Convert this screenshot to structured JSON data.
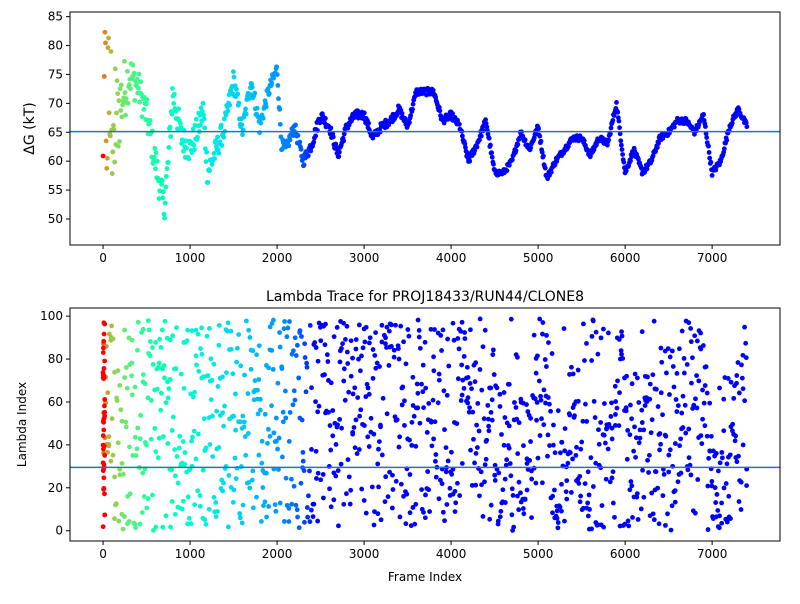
{
  "chart_data": [
    {
      "type": "scatter",
      "title": "",
      "xlabel": "",
      "ylabel": "ΔG (kT)",
      "xlim": [
        -380,
        7780
      ],
      "ylim": [
        45.5,
        85.8
      ],
      "xticks": [
        0,
        1000,
        2000,
        3000,
        4000,
        5000,
        6000,
        7000
      ],
      "xtick_labels": [
        "0",
        "1000",
        "2000",
        "3000",
        "4000",
        "5000",
        "6000",
        "7000"
      ],
      "yticks": [
        50,
        55,
        60,
        65,
        70,
        75,
        80,
        85
      ],
      "ytick_labels": [
        "50",
        "55",
        "60",
        "65",
        "70",
        "75",
        "80",
        "85"
      ],
      "hline": 65.1,
      "hline_color": "#1f77b4",
      "colormap": "rainbow",
      "color_note": "color runs from red at frame 0 to purple at late frames",
      "x_max": 7400,
      "trend": {
        "x": [
          0,
          60,
          120,
          200,
          300,
          400,
          500,
          600,
          700,
          750,
          800,
          900,
          1000,
          1100,
          1150,
          1200,
          1300,
          1400,
          1500,
          1550,
          1600,
          1700,
          1750,
          1800,
          1900,
          2000,
          2050,
          2100,
          2200,
          2300,
          2400,
          2500,
          2600,
          2700,
          2800,
          2900,
          3000,
          3100,
          3200,
          3300,
          3400,
          3500,
          3600,
          3700,
          3800,
          3900,
          4000,
          4100,
          4200,
          4300,
          4400,
          4500,
          4600,
          4700,
          4800,
          4900,
          5000,
          5100,
          5200,
          5300,
          5400,
          5500,
          5600,
          5700,
          5800,
          5900,
          6000,
          6100,
          6200,
          6300,
          6400,
          6500,
          6600,
          6700,
          6800,
          6900,
          7000,
          7100,
          7200,
          7300,
          7400
        ],
        "y": [
          68,
          70,
          66,
          70,
          75,
          73,
          68,
          60,
          52,
          60,
          72,
          64,
          62,
          66,
          69,
          58,
          62,
          66,
          74,
          70,
          65,
          74,
          70,
          66,
          72,
          76,
          63,
          62,
          66,
          60,
          63,
          68,
          66,
          61,
          66,
          68,
          68,
          64,
          66,
          67,
          69,
          66,
          72,
          72,
          72,
          67,
          68,
          66,
          60,
          63,
          67,
          58,
          58,
          60,
          65,
          62,
          66,
          57,
          60,
          62,
          64,
          64,
          61,
          64,
          63,
          70,
          58,
          62,
          58,
          60,
          64,
          65,
          67,
          67,
          65,
          68,
          58,
          60,
          66,
          69,
          66
        ],
        "spread": [
          14,
          13,
          10,
          7,
          4,
          3,
          3,
          3,
          3,
          3,
          3,
          2.5,
          2.5,
          2.5,
          2.5,
          2.5,
          2,
          2,
          2,
          1.5,
          1.5,
          1.5,
          1.5,
          1.5,
          1.2,
          1.2,
          1,
          1,
          1,
          1,
          1,
          1,
          0.8,
          0.8,
          0.8,
          0.8,
          0.7,
          0.7,
          0.7,
          0.7,
          0.7,
          0.6,
          0.6,
          0.6,
          0.6,
          0.6,
          0.6,
          0.6,
          0.6,
          0.6,
          0.6,
          0.5,
          0.5,
          0.5,
          0.5,
          0.5,
          0.5,
          0.5,
          0.5,
          0.5,
          0.5,
          0.5,
          0.5,
          0.5,
          0.5,
          0.5,
          0.5,
          0.5,
          0.5,
          0.5,
          0.5,
          0.5,
          0.5,
          0.5,
          0.5,
          0.5,
          0.5,
          0.5,
          0.5,
          0.5,
          0.5
        ]
      }
    },
    {
      "type": "scatter",
      "title": "Lambda Trace for PROJ18433/RUN44/CLONE8",
      "xlabel": "Frame Index",
      "ylabel": "Lambda Index",
      "xlim": [
        -380,
        7780
      ],
      "ylim": [
        -4.8,
        103.8
      ],
      "xticks": [
        0,
        1000,
        2000,
        3000,
        4000,
        5000,
        6000,
        7000
      ],
      "xtick_labels": [
        "0",
        "1000",
        "2000",
        "3000",
        "4000",
        "5000",
        "6000",
        "7000"
      ],
      "yticks": [
        0,
        20,
        40,
        60,
        80,
        100
      ],
      "ytick_labels": [
        "0",
        "20",
        "40",
        "60",
        "80",
        "100"
      ],
      "hline": 29.5,
      "hline_color": "#1f77b4",
      "colormap": "rainbow",
      "color_note": "color runs from red at frame 0 to purple at late frames",
      "x_max": 7400,
      "value_range": [
        0,
        99
      ],
      "lambda_bands": [
        {
          "x": 1050,
          "y0": 2,
          "y1": 98
        },
        {
          "x": 1250,
          "y0": 5,
          "y1": 97
        },
        {
          "x": 1600,
          "y0": 2,
          "y1": 99
        },
        {
          "x": 1800,
          "y0": 3,
          "y1": 98
        },
        {
          "x": 2050,
          "y0": 4,
          "y1": 99
        },
        {
          "x": 2250,
          "y0": 1,
          "y1": 97
        },
        {
          "x": 2650,
          "y0": 2,
          "y1": 99
        },
        {
          "x": 2900,
          "y0": 4,
          "y1": 98
        },
        {
          "x": 3050,
          "y0": 1,
          "y1": 99
        },
        {
          "x": 3250,
          "y0": 3,
          "y1": 99
        },
        {
          "x": 3500,
          "y0": 2,
          "y1": 98
        },
        {
          "x": 3700,
          "y0": 1,
          "y1": 99
        },
        {
          "x": 3800,
          "y0": 5,
          "y1": 99
        },
        {
          "x": 4050,
          "y0": 0,
          "y1": 99
        },
        {
          "x": 4150,
          "y0": 55,
          "y1": 99
        },
        {
          "x": 4300,
          "y0": 0,
          "y1": 80
        },
        {
          "x": 4450,
          "y0": 0,
          "y1": 99
        },
        {
          "x": 4650,
          "y0": 0,
          "y1": 70
        },
        {
          "x": 4800,
          "y0": 0,
          "y1": 60
        },
        {
          "x": 5050,
          "y0": 20,
          "y1": 99
        },
        {
          "x": 5200,
          "y0": 0,
          "y1": 60
        },
        {
          "x": 5400,
          "y0": 5,
          "y1": 85
        },
        {
          "x": 5650,
          "y0": 0,
          "y1": 99
        },
        {
          "x": 5800,
          "y0": 0,
          "y1": 75
        },
        {
          "x": 5950,
          "y0": 45,
          "y1": 99
        },
        {
          "x": 6100,
          "y0": 0,
          "y1": 80
        },
        {
          "x": 6300,
          "y0": 2,
          "y1": 70
        },
        {
          "x": 6500,
          "y0": 0,
          "y1": 90
        },
        {
          "x": 6700,
          "y0": 20,
          "y1": 99
        },
        {
          "x": 6850,
          "y0": 40,
          "y1": 99
        },
        {
          "x": 7050,
          "y0": 0,
          "y1": 40
        },
        {
          "x": 7200,
          "y0": 0,
          "y1": 75
        },
        {
          "x": 7350,
          "y0": 0,
          "y1": 99
        }
      ]
    }
  ]
}
